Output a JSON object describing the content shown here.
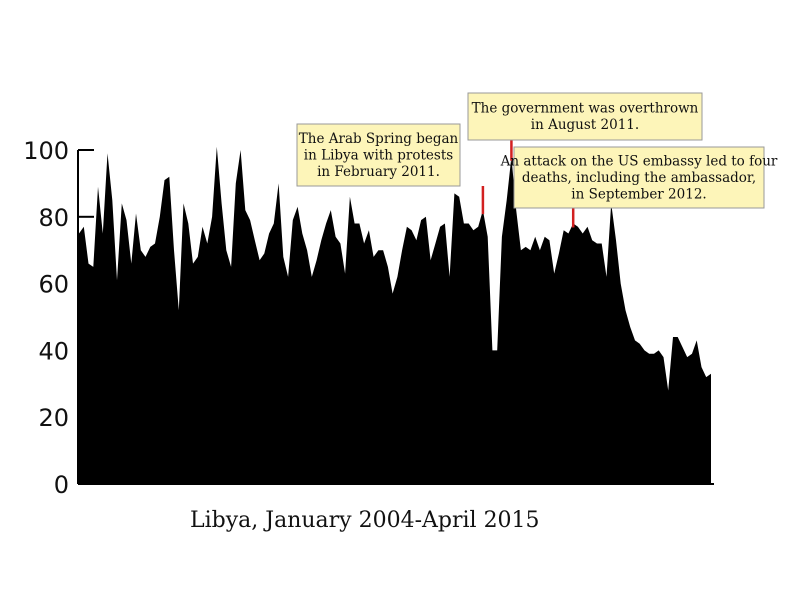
{
  "chart_data": {
    "type": "area",
    "xlabel": "Libya, January 2004-April 2015",
    "ylim": [
      0,
      100
    ],
    "y_ticks": [
      0,
      20,
      40,
      60,
      80,
      100
    ],
    "x_start": "2004-01",
    "x_end": "2015-04",
    "grid": false,
    "fill_color": "#000000",
    "values": [
      75,
      77,
      66,
      65,
      89,
      75,
      99,
      85,
      61,
      84,
      79,
      66,
      81,
      70,
      68,
      71,
      72,
      80,
      91,
      92,
      70,
      52,
      84,
      78,
      66,
      68,
      77,
      72,
      80,
      101,
      84,
      70,
      65,
      90,
      100,
      82,
      79,
      73,
      67,
      69,
      75,
      78,
      90,
      68,
      62,
      79,
      83,
      75,
      70,
      62,
      67,
      73,
      78,
      82,
      74,
      72,
      63,
      86,
      78,
      78,
      72,
      76,
      68,
      70,
      70,
      65,
      57,
      62,
      70,
      77,
      76,
      73,
      79,
      80,
      67,
      72,
      77,
      78,
      62,
      87,
      86,
      78,
      78,
      76,
      77,
      82,
      74,
      40,
      40,
      74,
      85,
      98,
      82,
      70,
      71,
      70,
      74,
      70,
      74,
      73,
      63,
      69,
      76,
      75,
      78,
      77,
      75,
      77,
      73,
      72,
      72,
      62,
      84,
      73,
      60,
      52,
      47,
      43,
      42,
      40,
      39,
      39,
      40,
      38,
      28,
      44,
      44,
      41,
      38,
      39,
      43,
      35,
      32,
      33
    ],
    "annotations": [
      {
        "id": "arab-spring",
        "lines": [
          "The Arab Spring began",
          "in Libya with protests",
          "in February 2011."
        ],
        "date": "2011-02"
      },
      {
        "id": "overthrown",
        "lines": [
          "The government was overthrown",
          "in August 2011."
        ],
        "date": "2011-08"
      },
      {
        "id": "embassy",
        "lines": [
          "An attack on the US embassy led to four",
          "deaths, including the ambassador,",
          "in September 2012."
        ],
        "date": "2012-09"
      }
    ],
    "colors": {
      "area": "#000000",
      "note_bg": "#fdf5b9",
      "note_border": "#999999",
      "marker": "#d22020"
    }
  }
}
